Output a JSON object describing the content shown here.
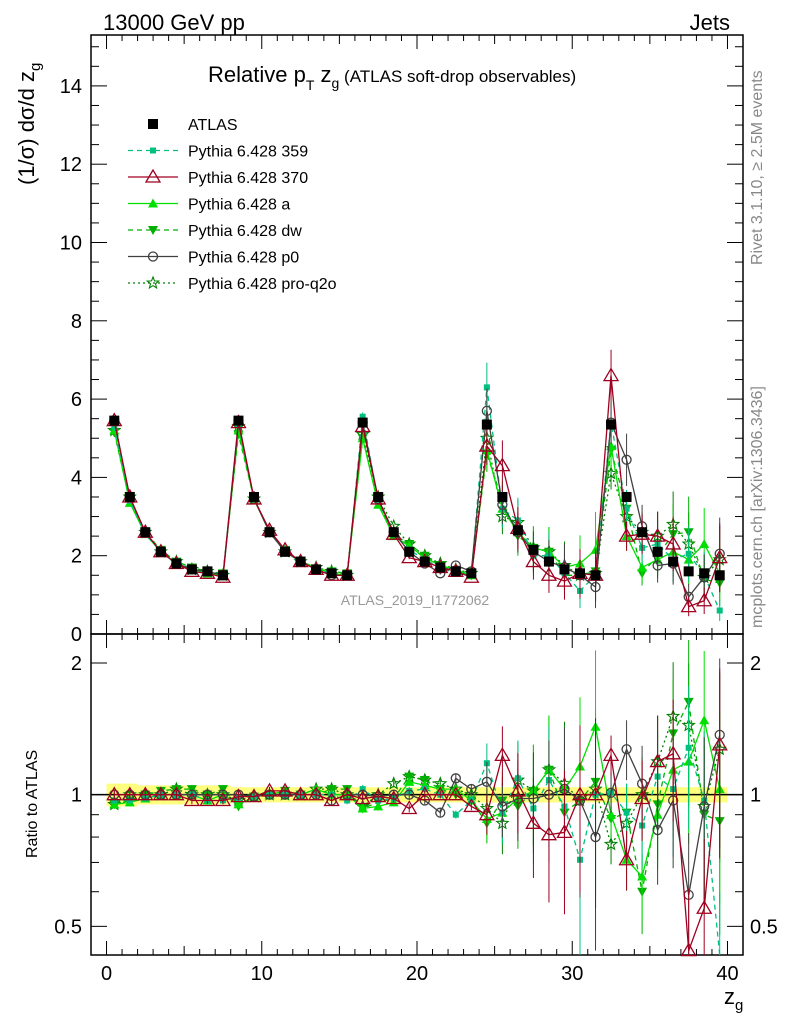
{
  "header": {
    "left": "13000 GeV pp",
    "right": "Jets"
  },
  "side_text": {
    "rivet": "Rivet 3.1.10, ≥ 2.5M events",
    "mcplots": "mcplots.cern.ch [arXiv:1306.3436]"
  },
  "watermark": "ATLAS_2019_I1772062",
  "colors": {
    "atlas": "#000000",
    "p359": "#00c080",
    "p370": "#a00020",
    "pa": "#00e000",
    "pdw": "#00b000",
    "pp0": "#404040",
    "pq2o": "#008000",
    "band": "#ffff66"
  },
  "chart_data": [
    {
      "type": "line",
      "title": "Relative p_T z_g (ATLAS soft-drop observables)",
      "title_parts": {
        "main": "Relative p",
        "sub": "T",
        "var": " z",
        "var_sub": "g",
        "rest": " (ATLAS soft-drop observables)"
      },
      "ylabel": "(1/σ) dσ/d z_g",
      "ylim": [
        0,
        15.3
      ],
      "xlim": [
        -1,
        41
      ],
      "yticks": [
        "0",
        "2",
        "4",
        "6",
        "8",
        "10",
        "12",
        "14"
      ],
      "x": [
        0.5,
        1.5,
        2.5,
        3.5,
        4.5,
        5.5,
        6.5,
        7.5,
        8.5,
        9.5,
        10.5,
        11.5,
        12.5,
        13.5,
        14.5,
        15.5,
        16.5,
        17.5,
        18.5,
        19.5,
        20.5,
        21.5,
        22.5,
        23.5,
        24.5,
        25.5,
        26.5,
        27.5,
        28.5,
        29.5,
        30.5,
        31.5,
        32.5,
        33.5,
        34.5,
        35.5,
        36.5,
        37.5,
        38.5,
        39.5
      ],
      "series": [
        {
          "name": "ATLAS",
          "key": "atlas",
          "values": [
            5.45,
            3.5,
            2.6,
            2.1,
            1.8,
            1.65,
            1.6,
            1.5,
            5.45,
            3.5,
            2.6,
            2.1,
            1.85,
            1.65,
            1.55,
            1.5,
            5.4,
            3.5,
            2.6,
            2.1,
            1.85,
            1.7,
            1.6,
            1.55,
            5.35,
            3.5,
            2.65,
            2.15,
            1.85,
            1.65,
            1.55,
            1.5,
            5.35,
            3.5,
            2.6,
            2.1,
            1.85,
            1.6,
            1.55,
            1.5
          ]
        },
        {
          "name": "Pythia 6.428 359",
          "key": "p359",
          "values": [
            5.3,
            3.4,
            2.55,
            2.1,
            1.8,
            1.65,
            1.55,
            1.45,
            5.35,
            3.45,
            2.6,
            2.1,
            1.85,
            1.65,
            1.55,
            1.45,
            5.55,
            3.4,
            2.55,
            2.15,
            1.9,
            1.7,
            1.55,
            1.5,
            6.3,
            3.2,
            2.9,
            2.0,
            2.0,
            1.55,
            1.1,
            1.5,
            5.4,
            3.2,
            2.2,
            2.3,
            1.9,
            2.05,
            1.5,
            0.6
          ]
        },
        {
          "name": "Pythia 6.428 370",
          "key": "p370",
          "values": [
            5.45,
            3.5,
            2.6,
            2.1,
            1.8,
            1.6,
            1.55,
            1.45,
            5.4,
            3.45,
            2.65,
            2.15,
            1.85,
            1.65,
            1.5,
            1.5,
            5.3,
            3.45,
            2.55,
            1.95,
            1.85,
            1.7,
            1.6,
            1.45,
            4.8,
            4.3,
            2.7,
            1.85,
            1.5,
            1.35,
            1.55,
            1.5,
            6.6,
            2.5,
            2.55,
            2.5,
            2.3,
            0.7,
            0.85,
            1.95
          ]
        },
        {
          "name": "Pythia 6.428 a",
          "key": "pa",
          "values": [
            5.2,
            3.35,
            2.55,
            2.1,
            1.8,
            1.65,
            1.55,
            1.5,
            5.2,
            3.45,
            2.6,
            2.15,
            1.85,
            1.7,
            1.55,
            1.5,
            5.0,
            3.3,
            2.5,
            2.25,
            1.95,
            1.75,
            1.65,
            1.5,
            4.7,
            3.2,
            2.6,
            2.2,
            2.1,
            1.7,
            1.8,
            2.15,
            4.8,
            2.5,
            1.7,
            1.9,
            2.1,
            1.9,
            2.3,
            1.55
          ]
        },
        {
          "name": "Pythia 6.428 dw",
          "key": "pdw",
          "values": [
            5.15,
            3.4,
            2.6,
            2.15,
            1.85,
            1.7,
            1.6,
            1.55,
            5.1,
            3.45,
            2.6,
            2.15,
            1.85,
            1.65,
            1.6,
            1.55,
            5.0,
            3.35,
            2.55,
            2.3,
            2.0,
            1.75,
            1.6,
            1.5,
            4.6,
            3.4,
            2.5,
            2.2,
            2.1,
            1.5,
            1.5,
            1.6,
            4.7,
            3.2,
            1.55,
            2.0,
            2.55,
            2.6,
            1.4,
            1.3
          ]
        },
        {
          "name": "Pythia 6.428 p0",
          "key": "pp0",
          "values": [
            5.45,
            3.5,
            2.6,
            2.1,
            1.8,
            1.65,
            1.6,
            1.5,
            5.45,
            3.45,
            2.6,
            2.1,
            1.85,
            1.65,
            1.5,
            1.5,
            5.4,
            3.45,
            2.6,
            2.1,
            1.8,
            1.55,
            1.75,
            1.6,
            5.7,
            3.3,
            2.6,
            2.1,
            1.85,
            1.7,
            1.5,
            1.2,
            5.4,
            4.45,
            2.75,
            1.75,
            1.8,
            0.95,
            1.45,
            2.05
          ]
        },
        {
          "name": "Pythia 6.428 pro-q2o",
          "key": "pq2o",
          "values": [
            5.2,
            3.5,
            2.6,
            2.1,
            1.85,
            1.65,
            1.6,
            1.5,
            5.3,
            3.45,
            2.6,
            2.1,
            1.85,
            1.7,
            1.6,
            1.5,
            5.1,
            3.5,
            2.75,
            2.3,
            2.0,
            1.8,
            1.65,
            1.55,
            5.0,
            3.0,
            2.85,
            2.2,
            2.1,
            1.75,
            1.5,
            1.55,
            4.1,
            3.0,
            2.6,
            2.5,
            2.8,
            2.3,
            1.45,
            1.9
          ]
        }
      ]
    },
    {
      "type": "line",
      "ylabel": "Ratio to ATLAS",
      "xlabel": "z_g",
      "xlabel_parts": {
        "main": "z",
        "sub": "g"
      },
      "ylim": [
        0.43,
        2.33
      ],
      "xticks": [
        "0",
        "10",
        "20",
        "30",
        "40"
      ],
      "yticks": [
        "0.5",
        "1",
        "2"
      ],
      "band_relative_uncertainty": [
        0.06,
        0.06,
        0.05,
        0.05,
        0.05,
        0.05,
        0.05,
        0.05,
        0.04,
        0.04,
        0.04,
        0.04,
        0.04,
        0.04,
        0.04,
        0.04,
        0.04,
        0.04,
        0.04,
        0.04,
        0.04,
        0.04,
        0.04,
        0.04,
        0.04,
        0.04,
        0.04,
        0.04,
        0.04,
        0.04,
        0.04,
        0.04,
        0.04,
        0.04,
        0.04,
        0.04,
        0.04,
        0.04,
        0.04,
        0.04
      ],
      "series": [
        {
          "name": "Pythia 6.428 359",
          "key": "p359",
          "values": [
            0.97,
            0.97,
            0.98,
            1.0,
            1.0,
            1.0,
            0.97,
            0.97,
            0.98,
            0.99,
            1.0,
            1.0,
            1.0,
            1.0,
            1.0,
            0.97,
            1.03,
            0.97,
            0.98,
            1.02,
            1.03,
            1.0,
            0.9,
            0.97,
            1.18,
            0.91,
            1.09,
            0.93,
            1.08,
            0.94,
            0.71,
            1.0,
            1.01,
            0.91,
            0.85,
            1.1,
            1.03,
            1.28,
            0.97,
            0.4
          ]
        },
        {
          "name": "Pythia 6.428 370",
          "key": "p370",
          "values": [
            1.0,
            1.0,
            1.0,
            1.0,
            1.0,
            0.97,
            0.97,
            0.97,
            0.99,
            0.99,
            1.02,
            1.02,
            1.0,
            1.0,
            0.97,
            1.0,
            0.98,
            0.99,
            0.98,
            0.93,
            1.0,
            1.0,
            1.0,
            0.94,
            0.9,
            1.23,
            1.02,
            0.86,
            0.81,
            0.82,
            1.0,
            1.0,
            1.23,
            0.71,
            0.98,
            1.19,
            1.24,
            0.44,
            0.55,
            1.3
          ]
        },
        {
          "name": "Pythia 6.428 a",
          "key": "pa",
          "values": [
            0.95,
            0.96,
            0.98,
            1.0,
            1.0,
            1.0,
            0.97,
            1.0,
            0.95,
            0.99,
            1.0,
            1.02,
            1.0,
            1.03,
            1.0,
            1.0,
            0.93,
            0.94,
            0.96,
            1.07,
            1.05,
            1.03,
            1.03,
            0.97,
            0.88,
            0.91,
            0.98,
            1.02,
            1.14,
            1.03,
            1.16,
            1.43,
            0.9,
            0.71,
            0.65,
            0.9,
            1.14,
            1.19,
            1.48,
            1.03
          ]
        },
        {
          "name": "Pythia 6.428 dw",
          "key": "pdw",
          "values": [
            0.95,
            0.97,
            1.0,
            1.02,
            1.03,
            1.03,
            1.0,
            1.03,
            0.94,
            0.99,
            1.0,
            1.02,
            1.0,
            1.0,
            1.03,
            1.03,
            0.93,
            0.96,
            0.98,
            1.1,
            1.08,
            1.03,
            1.0,
            0.97,
            0.86,
            0.97,
            0.94,
            1.02,
            1.14,
            0.91,
            0.97,
            1.07,
            0.88,
            0.91,
            0.6,
            0.95,
            1.38,
            1.63,
            0.9,
            0.87
          ]
        },
        {
          "name": "Pythia 6.428 p0",
          "key": "pp0",
          "values": [
            1.0,
            1.0,
            1.0,
            1.0,
            1.0,
            1.0,
            1.0,
            1.0,
            1.0,
            0.99,
            1.0,
            1.0,
            1.0,
            1.0,
            0.97,
            1.0,
            1.0,
            0.99,
            1.0,
            1.0,
            0.97,
            0.91,
            1.09,
            1.03,
            1.07,
            0.94,
            0.98,
            0.98,
            1.0,
            1.03,
            0.97,
            0.8,
            1.01,
            1.27,
            1.06,
            0.83,
            0.97,
            0.59,
            0.94,
            1.37
          ]
        },
        {
          "name": "Pythia 6.428 pro-q2o",
          "key": "pq2o",
          "values": [
            0.95,
            1.0,
            1.0,
            1.0,
            1.03,
            1.0,
            1.0,
            1.0,
            0.97,
            0.99,
            1.0,
            1.0,
            1.0,
            1.03,
            1.03,
            1.0,
            0.94,
            1.0,
            1.06,
            1.1,
            1.08,
            1.06,
            1.03,
            1.0,
            0.93,
            0.86,
            1.08,
            1.02,
            1.14,
            1.06,
            0.97,
            1.03,
            0.77,
            0.86,
            1.0,
            1.19,
            1.51,
            1.44,
            0.94,
            1.27
          ]
        }
      ]
    }
  ],
  "legend": [
    {
      "label": "ATLAS",
      "key": "atlas",
      "marker": "square",
      "dash": "solid"
    },
    {
      "label": "Pythia 6.428 359",
      "key": "p359",
      "marker": "smallsquare",
      "dash": "dashed"
    },
    {
      "label": "Pythia 6.428 370",
      "key": "p370",
      "marker": "opentriangle",
      "dash": "solid"
    },
    {
      "label": "Pythia 6.428 a",
      "key": "pa",
      "marker": "triangle",
      "dash": "solid"
    },
    {
      "label": "Pythia 6.428 dw",
      "key": "pdw",
      "marker": "downtriangle",
      "dash": "dashed"
    },
    {
      "label": "Pythia 6.428 p0",
      "key": "pp0",
      "marker": "opencircle",
      "dash": "solid"
    },
    {
      "label": "Pythia 6.428 pro-q2o",
      "key": "pq2o",
      "marker": "openstar",
      "dash": "dotted"
    }
  ]
}
